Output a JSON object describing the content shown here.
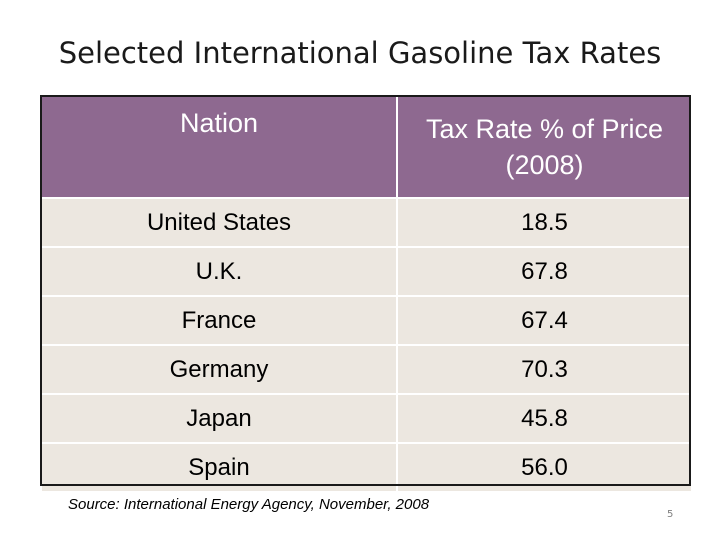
{
  "slide": {
    "title": "Selected International Gasoline Tax Rates",
    "source": "Source: International Energy Agency, November, 2008",
    "page_number": "5"
  },
  "table": {
    "headers": {
      "nation": "Nation",
      "tax_rate": "Tax Rate % of Price (2008)"
    },
    "rows": [
      {
        "nation": "United States",
        "rate": "18.5"
      },
      {
        "nation": "U.K.",
        "rate": "67.8"
      },
      {
        "nation": "France",
        "rate": "67.4"
      },
      {
        "nation": "Germany",
        "rate": "70.3"
      },
      {
        "nation": "Japan",
        "rate": "45.8"
      },
      {
        "nation": "Spain",
        "rate": "56.0"
      }
    ]
  },
  "colors": {
    "header_bg": "#8e6990",
    "header_text": "#ffffff",
    "cell_bg": "#ece7e0",
    "outline": "#1a1a1a"
  }
}
